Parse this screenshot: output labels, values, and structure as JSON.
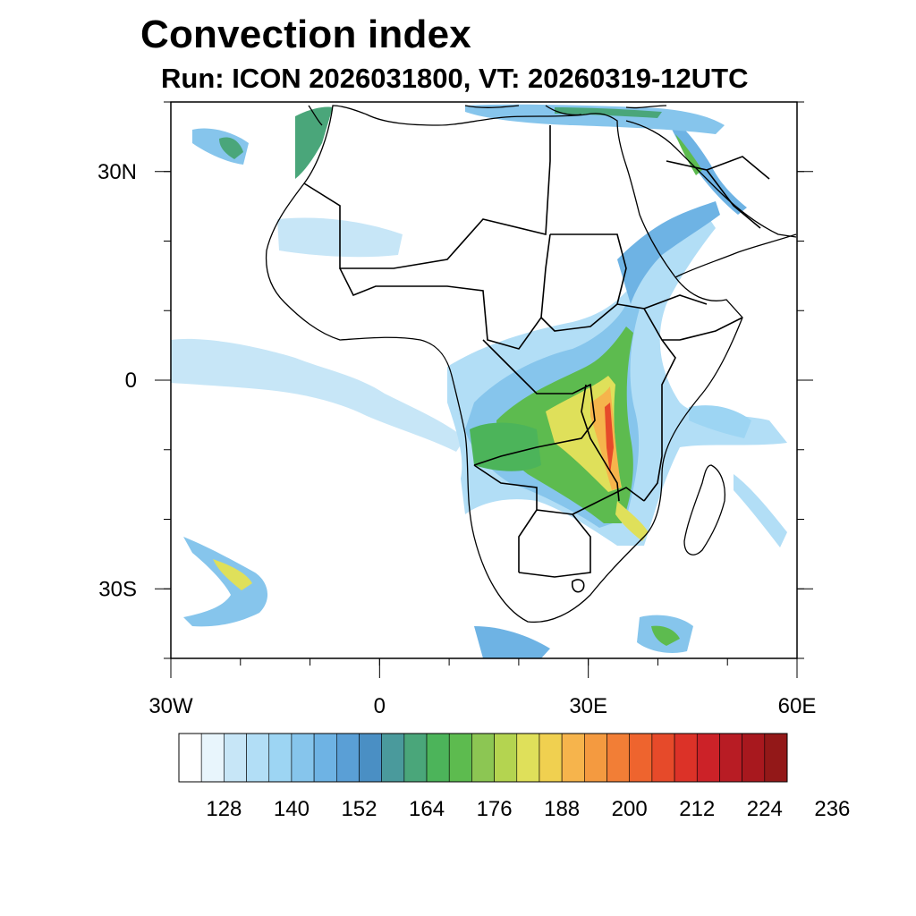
{
  "title": "Convection index",
  "subtitle": "Run: ICON 2026031800,  VT: 20260319-12UTC",
  "map": {
    "region": "Africa",
    "lon_range": [
      -30,
      60
    ],
    "lat_range": [
      -40,
      40
    ],
    "lat_ticks": [
      {
        "value": 30,
        "label": "30N"
      },
      {
        "value": 0,
        "label": "0"
      },
      {
        "value": -30,
        "label": "30S"
      }
    ],
    "lon_ticks": [
      {
        "value": -30,
        "label": "30W"
      },
      {
        "value": 0,
        "label": "0"
      },
      {
        "value": 30,
        "label": "30E"
      },
      {
        "value": 60,
        "label": "60E"
      }
    ]
  },
  "colorbar": {
    "colors": [
      "#ffffff",
      "#e8f5fc",
      "#c7e6f7",
      "#b2def6",
      "#9dd5f3",
      "#86c5ec",
      "#6eb3e4",
      "#5a9fd6",
      "#4a8fc4",
      "#4a9a9c",
      "#4aa67a",
      "#4cb45a",
      "#5dbb4f",
      "#8cc653",
      "#b4d450",
      "#dfe05a",
      "#f0d050",
      "#f6b44c",
      "#f49a40",
      "#f27e36",
      "#ee642e",
      "#e64a2a",
      "#dc3228",
      "#cc2228",
      "#b81c24",
      "#a8181e",
      "#931818"
    ],
    "tick_labels": [
      "128",
      "140",
      "152",
      "164",
      "176",
      "188",
      "200",
      "212",
      "224",
      "236"
    ]
  }
}
